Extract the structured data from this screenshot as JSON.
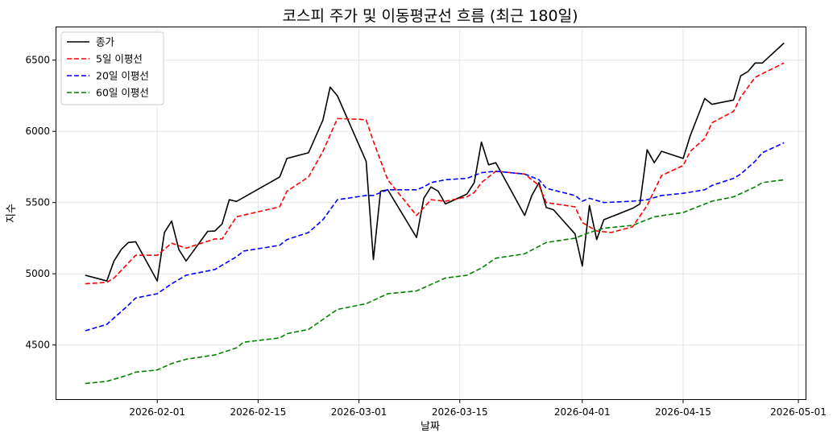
{
  "chart_data": {
    "type": "line",
    "title": "코스피 주가 및 이동평균선 흐름 (최근 180일)",
    "xlabel": "날짜",
    "ylabel": "지수",
    "xlim": [
      "2026-01-18",
      "2026-05-02"
    ],
    "ylim": [
      4120,
      6730
    ],
    "grid": true,
    "legend_position": "top-left",
    "x_ticks": [
      "2026-02-01",
      "2026-02-15",
      "2026-03-01",
      "2026-03-15",
      "2026-04-01",
      "2026-04-15",
      "2026-05-01"
    ],
    "y_ticks": [
      4500,
      5000,
      5500,
      6000,
      6500
    ],
    "series": [
      {
        "name": "종가",
        "color": "#000000",
        "dash": "solid",
        "points": [
          [
            "2026-01-22",
            4990
          ],
          [
            "2026-01-25",
            4950
          ],
          [
            "2026-01-26",
            5090
          ],
          [
            "2026-01-27",
            5170
          ],
          [
            "2026-01-28",
            5220
          ],
          [
            "2026-01-29",
            5225
          ],
          [
            "2026-02-01",
            4950
          ],
          [
            "2026-02-02",
            5290
          ],
          [
            "2026-02-03",
            5370
          ],
          [
            "2026-02-04",
            5170
          ],
          [
            "2026-02-05",
            5090
          ],
          [
            "2026-02-08",
            5298
          ],
          [
            "2026-02-09",
            5300
          ],
          [
            "2026-02-10",
            5350
          ],
          [
            "2026-02-11",
            5520
          ],
          [
            "2026-02-12",
            5508
          ],
          [
            "2026-02-18",
            5680
          ],
          [
            "2026-02-19",
            5810
          ],
          [
            "2026-02-22",
            5850
          ],
          [
            "2026-02-24",
            6080
          ],
          [
            "2026-02-25",
            6310
          ],
          [
            "2026-02-26",
            6250
          ],
          [
            "2026-03-02",
            5790
          ],
          [
            "2026-03-03",
            5100
          ],
          [
            "2026-03-04",
            5580
          ],
          [
            "2026-03-05",
            5590
          ],
          [
            "2026-03-09",
            5255
          ],
          [
            "2026-03-10",
            5530
          ],
          [
            "2026-03-11",
            5610
          ],
          [
            "2026-03-12",
            5580
          ],
          [
            "2026-03-13",
            5490
          ],
          [
            "2026-03-16",
            5560
          ],
          [
            "2026-03-17",
            5640
          ],
          [
            "2026-03-18",
            5925
          ],
          [
            "2026-03-19",
            5765
          ],
          [
            "2026-03-20",
            5780
          ],
          [
            "2026-03-24",
            5410
          ],
          [
            "2026-03-25",
            5550
          ],
          [
            "2026-03-26",
            5640
          ],
          [
            "2026-03-27",
            5465
          ],
          [
            "2026-03-28",
            5450
          ],
          [
            "2026-03-31",
            5280
          ],
          [
            "2026-04-01",
            5055
          ],
          [
            "2026-04-02",
            5480
          ],
          [
            "2026-04-03",
            5240
          ],
          [
            "2026-04-04",
            5380
          ],
          [
            "2026-04-08",
            5460
          ],
          [
            "2026-04-09",
            5490
          ],
          [
            "2026-04-10",
            5870
          ],
          [
            "2026-04-11",
            5780
          ],
          [
            "2026-04-12",
            5860
          ],
          [
            "2026-04-15",
            5810
          ],
          [
            "2026-04-16",
            5970
          ],
          [
            "2026-04-18",
            6230
          ],
          [
            "2026-04-19",
            6190
          ],
          [
            "2026-04-22",
            6220
          ],
          [
            "2026-04-23",
            6390
          ],
          [
            "2026-04-24",
            6420
          ],
          [
            "2026-04-25",
            6480
          ],
          [
            "2026-04-26",
            6480
          ],
          [
            "2026-04-29",
            6620
          ]
        ]
      },
      {
        "name": "5일 이평선",
        "color": "#ff0000",
        "dash": "dashed",
        "points": [
          [
            "2026-01-22",
            4930
          ],
          [
            "2026-01-25",
            4940
          ],
          [
            "2026-01-26",
            4970
          ],
          [
            "2026-01-29",
            5130
          ],
          [
            "2026-02-01",
            5130
          ],
          [
            "2026-02-03",
            5215
          ],
          [
            "2026-02-05",
            5180
          ],
          [
            "2026-02-09",
            5245
          ],
          [
            "2026-02-10",
            5245
          ],
          [
            "2026-02-12",
            5400
          ],
          [
            "2026-02-18",
            5470
          ],
          [
            "2026-02-19",
            5580
          ],
          [
            "2026-02-22",
            5680
          ],
          [
            "2026-02-24",
            5860
          ],
          [
            "2026-02-26",
            6090
          ],
          [
            "2026-03-01",
            6085
          ],
          [
            "2026-03-02",
            6080
          ],
          [
            "2026-03-03",
            5930
          ],
          [
            "2026-03-05",
            5660
          ],
          [
            "2026-03-09",
            5410
          ],
          [
            "2026-03-11",
            5520
          ],
          [
            "2026-03-13",
            5510
          ],
          [
            "2026-03-16",
            5540
          ],
          [
            "2026-03-17",
            5570
          ],
          [
            "2026-03-18",
            5640
          ],
          [
            "2026-03-20",
            5720
          ],
          [
            "2026-03-24",
            5700
          ],
          [
            "2026-03-26",
            5620
          ],
          [
            "2026-03-27",
            5500
          ],
          [
            "2026-03-31",
            5470
          ],
          [
            "2026-04-01",
            5360
          ],
          [
            "2026-04-03",
            5300
          ],
          [
            "2026-04-05",
            5290
          ],
          [
            "2026-04-08",
            5330
          ],
          [
            "2026-04-10",
            5480
          ],
          [
            "2026-04-12",
            5690
          ],
          [
            "2026-04-15",
            5760
          ],
          [
            "2026-04-16",
            5860
          ],
          [
            "2026-04-18",
            5950
          ],
          [
            "2026-04-19",
            6060
          ],
          [
            "2026-04-22",
            6140
          ],
          [
            "2026-04-23",
            6240
          ],
          [
            "2026-04-25",
            6380
          ],
          [
            "2026-04-29",
            6480
          ]
        ]
      },
      {
        "name": "20일 이평선",
        "color": "#0000ff",
        "dash": "dashed",
        "points": [
          [
            "2026-01-22",
            4600
          ],
          [
            "2026-01-25",
            4645
          ],
          [
            "2026-01-26",
            4690
          ],
          [
            "2026-01-28",
            4780
          ],
          [
            "2026-01-29",
            4830
          ],
          [
            "2026-02-01",
            4860
          ],
          [
            "2026-02-03",
            4930
          ],
          [
            "2026-02-05",
            4990
          ],
          [
            "2026-02-09",
            5030
          ],
          [
            "2026-02-10",
            5060
          ],
          [
            "2026-02-12",
            5120
          ],
          [
            "2026-02-13",
            5160
          ],
          [
            "2026-02-18",
            5200
          ],
          [
            "2026-02-19",
            5240
          ],
          [
            "2026-02-22",
            5290
          ],
          [
            "2026-02-24",
            5380
          ],
          [
            "2026-02-26",
            5520
          ],
          [
            "2026-03-02",
            5550
          ],
          [
            "2026-03-03",
            5550
          ],
          [
            "2026-03-05",
            5590
          ],
          [
            "2026-03-09",
            5590
          ],
          [
            "2026-03-10",
            5610
          ],
          [
            "2026-03-11",
            5640
          ],
          [
            "2026-03-13",
            5660
          ],
          [
            "2026-03-16",
            5670
          ],
          [
            "2026-03-18",
            5710
          ],
          [
            "2026-03-20",
            5720
          ],
          [
            "2026-03-24",
            5700
          ],
          [
            "2026-03-26",
            5660
          ],
          [
            "2026-03-27",
            5600
          ],
          [
            "2026-03-31",
            5550
          ],
          [
            "2026-04-01",
            5510
          ],
          [
            "2026-04-02",
            5530
          ],
          [
            "2026-04-04",
            5500
          ],
          [
            "2026-04-08",
            5510
          ],
          [
            "2026-04-10",
            5520
          ],
          [
            "2026-04-12",
            5550
          ],
          [
            "2026-04-15",
            5565
          ],
          [
            "2026-04-18",
            5590
          ],
          [
            "2026-04-19",
            5620
          ],
          [
            "2026-04-22",
            5670
          ],
          [
            "2026-04-23",
            5700
          ],
          [
            "2026-04-25",
            5790
          ],
          [
            "2026-04-26",
            5850
          ],
          [
            "2026-04-29",
            5920
          ]
        ]
      },
      {
        "name": "60일 이평선",
        "color": "#008000",
        "dash": "dashed",
        "points": [
          [
            "2026-01-22",
            4230
          ],
          [
            "2026-01-25",
            4245
          ],
          [
            "2026-01-28",
            4290
          ],
          [
            "2026-01-29",
            4310
          ],
          [
            "2026-02-01",
            4325
          ],
          [
            "2026-02-03",
            4370
          ],
          [
            "2026-02-05",
            4400
          ],
          [
            "2026-02-09",
            4430
          ],
          [
            "2026-02-12",
            4480
          ],
          [
            "2026-02-13",
            4520
          ],
          [
            "2026-02-18",
            4550
          ],
          [
            "2026-02-19",
            4580
          ],
          [
            "2026-02-22",
            4610
          ],
          [
            "2026-02-24",
            4680
          ],
          [
            "2026-02-26",
            4750
          ],
          [
            "2026-03-02",
            4790
          ],
          [
            "2026-03-05",
            4860
          ],
          [
            "2026-03-09",
            4880
          ],
          [
            "2026-03-13",
            4970
          ],
          [
            "2026-03-16",
            4990
          ],
          [
            "2026-03-18",
            5040
          ],
          [
            "2026-03-20",
            5110
          ],
          [
            "2026-03-24",
            5140
          ],
          [
            "2026-03-27",
            5220
          ],
          [
            "2026-03-31",
            5250
          ],
          [
            "2026-04-02",
            5290
          ],
          [
            "2026-04-04",
            5320
          ],
          [
            "2026-04-08",
            5340
          ],
          [
            "2026-04-11",
            5400
          ],
          [
            "2026-04-15",
            5430
          ],
          [
            "2026-04-19",
            5510
          ],
          [
            "2026-04-22",
            5540
          ],
          [
            "2026-04-25",
            5610
          ],
          [
            "2026-04-26",
            5640
          ],
          [
            "2026-04-29",
            5660
          ]
        ]
      }
    ]
  }
}
